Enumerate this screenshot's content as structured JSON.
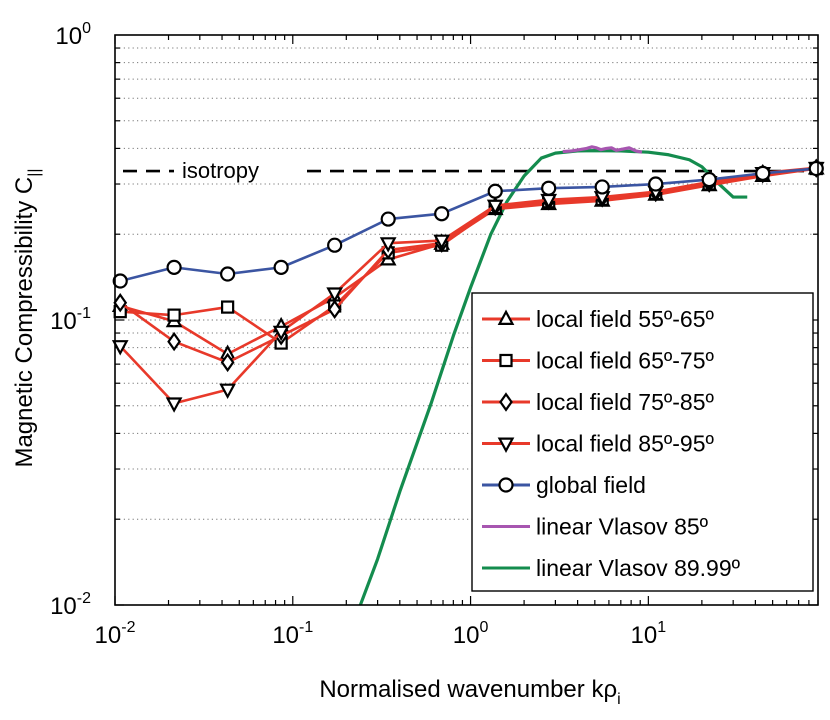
{
  "chart_data": {
    "type": "line",
    "xscale": "log",
    "yscale": "log",
    "xlim": [
      0.01,
      90
    ],
    "ylim": [
      0.01,
      1
    ],
    "xlabel": "Normalised wavenumber kρ",
    "xlabel_sub": "i",
    "ylabel": "Magnetic Compressibility C",
    "ylabel_sub": "||",
    "xticks": [
      {
        "value": 0.01,
        "base": "10",
        "exp": "-2"
      },
      {
        "value": 0.1,
        "base": "10",
        "exp": "-1"
      },
      {
        "value": 1,
        "base": "10",
        "exp": "0"
      },
      {
        "value": 10,
        "base": "10",
        "exp": "1"
      }
    ],
    "yticks": [
      {
        "value": 0.01,
        "base": "10",
        "exp": "-2"
      },
      {
        "value": 0.1,
        "base": "10",
        "exp": "-1"
      },
      {
        "value": 1,
        "base": "10",
        "exp": "0"
      }
    ],
    "grid": "y-major-and-minor-dotted",
    "reference_line": {
      "y": 0.333,
      "label": "isotropy",
      "style": "dashed",
      "color": "#000000"
    },
    "legend_position": "lower-right",
    "series": [
      {
        "name": "local field 55º-65º",
        "marker": "triangle-up",
        "color": "#e8392a",
        "x": [
          0.0107,
          0.0215,
          0.043,
          0.086,
          0.172,
          0.344,
          0.688,
          1.376,
          2.75,
          5.5,
          11,
          22,
          44,
          88
        ],
        "y": [
          0.112,
          0.099,
          0.076,
          0.095,
          0.12,
          0.163,
          0.185,
          0.245,
          0.255,
          0.262,
          0.275,
          0.297,
          0.32,
          0.34
        ]
      },
      {
        "name": "local field 65º-75º",
        "marker": "square",
        "color": "#e8392a",
        "x": [
          0.0107,
          0.0215,
          0.043,
          0.086,
          0.172,
          0.344,
          0.688,
          1.376,
          2.75,
          5.5,
          11,
          22,
          44,
          88
        ],
        "y": [
          0.107,
          0.104,
          0.111,
          0.083,
          0.112,
          0.172,
          0.183,
          0.248,
          0.26,
          0.265,
          0.278,
          0.3,
          0.325,
          0.34
        ]
      },
      {
        "name": "local field 75º-85º",
        "marker": "diamond",
        "color": "#e8392a",
        "x": [
          0.0107,
          0.0215,
          0.043,
          0.086,
          0.172,
          0.344,
          0.688,
          1.376,
          2.75,
          5.5,
          11,
          22,
          44,
          88
        ],
        "y": [
          0.115,
          0.084,
          0.071,
          0.088,
          0.109,
          0.176,
          0.186,
          0.25,
          0.262,
          0.268,
          0.28,
          0.302,
          0.326,
          0.341
        ]
      },
      {
        "name": "local field 85º-95º",
        "marker": "triangle-down",
        "color": "#e8392a",
        "x": [
          0.0107,
          0.0215,
          0.043,
          0.086,
          0.172,
          0.344,
          0.688,
          1.376,
          2.75,
          5.5,
          11,
          22,
          44,
          88
        ],
        "y": [
          0.081,
          0.051,
          0.057,
          0.091,
          0.124,
          0.186,
          0.19,
          0.252,
          0.264,
          0.27,
          0.282,
          0.305,
          0.328,
          0.342
        ]
      },
      {
        "name": "global field",
        "marker": "circle",
        "color": "#3b55a2",
        "x": [
          0.0107,
          0.0215,
          0.043,
          0.086,
          0.172,
          0.344,
          0.688,
          1.376,
          2.75,
          5.5,
          11,
          22,
          44,
          88
        ],
        "y": [
          0.137,
          0.153,
          0.145,
          0.153,
          0.183,
          0.226,
          0.236,
          0.283,
          0.29,
          0.293,
          0.3,
          0.311,
          0.327,
          0.34
        ]
      },
      {
        "name": "linear Vlasov 85º",
        "marker": "none",
        "color": "#a756b0",
        "x": [
          3.3,
          3.7,
          4.1,
          4.5,
          4.8,
          5.1,
          5.4,
          5.8,
          6.2,
          6.6,
          7.2,
          7.8,
          8.5,
          9.2
        ],
        "y": [
          0.39,
          0.392,
          0.396,
          0.4,
          0.405,
          0.402,
          0.396,
          0.4,
          0.402,
          0.394,
          0.398,
          0.402,
          0.392,
          0.388
        ]
      },
      {
        "name": "linear Vlasov 89.99º",
        "marker": "none",
        "color": "#148c4e",
        "x": [
          0.24,
          0.3,
          0.4,
          0.5,
          0.6,
          0.8,
          1,
          1.3,
          1.6,
          2,
          2.5,
          3,
          4,
          5,
          7,
          10,
          13,
          17,
          20,
          25,
          30,
          36
        ],
        "y": [
          0.01,
          0.0145,
          0.025,
          0.037,
          0.051,
          0.088,
          0.13,
          0.2,
          0.26,
          0.32,
          0.37,
          0.385,
          0.392,
          0.393,
          0.392,
          0.388,
          0.38,
          0.365,
          0.345,
          0.3,
          0.27,
          0.27
        ]
      }
    ]
  }
}
